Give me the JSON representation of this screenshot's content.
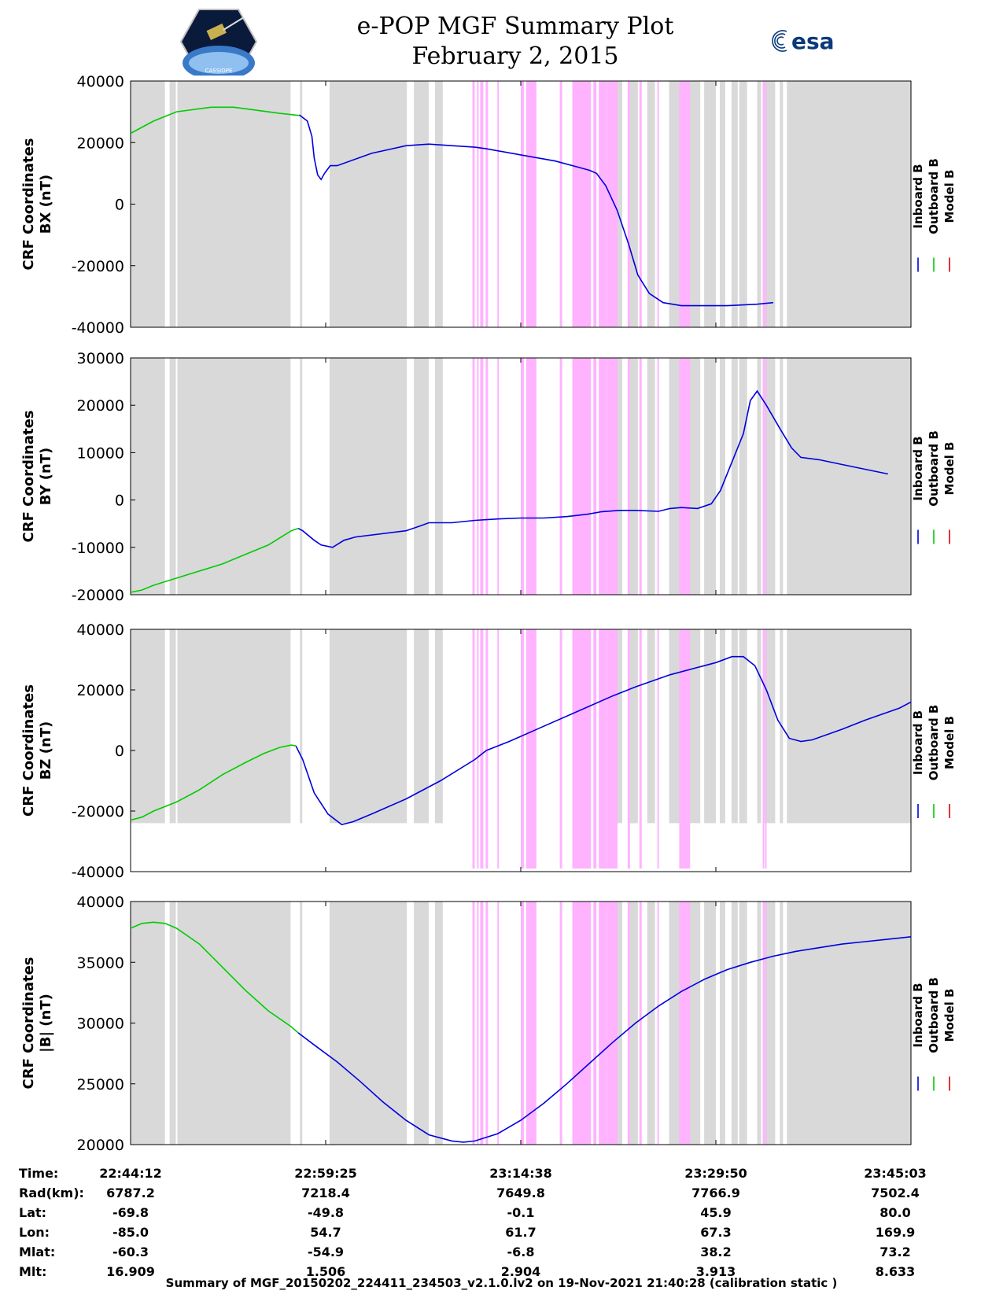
{
  "header": {
    "title": "e-POP MGF Summary Plot",
    "date": "February 2, 2015",
    "logo_left": "epop-mission-logo",
    "logo_right": "esa",
    "logo_left_text": "CASSIOPE"
  },
  "colors": {
    "inboard": "#0000e0",
    "outboard": "#00cc00",
    "model": "#e00000",
    "gap": "#d9d9d9",
    "event": "#ffb3ff"
  },
  "legend": [
    "Inboard B",
    "Outboard B",
    "Model B"
  ],
  "chart_data": [
    {
      "type": "line",
      "ylabel": [
        "CRF Coordinates",
        "BX (nT)"
      ],
      "ylim": [
        -40000,
        40000
      ],
      "yticks": [
        40000,
        20000,
        0,
        -20000,
        -40000
      ],
      "series": [
        {
          "name": "Inboard B",
          "points": [
            [
              0.735,
              29000
            ],
            [
              0.77,
              27000
            ],
            [
              0.79,
              22000
            ],
            [
              0.8,
              15000
            ],
            [
              0.815,
              9500
            ],
            [
              0.83,
              8000
            ],
            [
              0.845,
              10000
            ],
            [
              0.87,
              12500
            ],
            [
              0.9,
              12500
            ],
            [
              1.05,
              16500
            ],
            [
              1.2,
              19000
            ],
            [
              1.3,
              19500
            ],
            [
              1.4,
              19000
            ],
            [
              1.5,
              18500
            ],
            [
              1.55,
              18000
            ],
            [
              1.7,
              16000
            ],
            [
              1.85,
              14000
            ],
            [
              1.95,
              12000
            ],
            [
              2.0,
              11000
            ],
            [
              2.03,
              10000
            ],
            [
              2.07,
              6000
            ],
            [
              2.12,
              -2000
            ],
            [
              2.17,
              -13000
            ],
            [
              2.21,
              -23000
            ],
            [
              2.26,
              -29000
            ],
            [
              2.32,
              -32000
            ],
            [
              2.4,
              -33000
            ],
            [
              2.5,
              -33000
            ],
            [
              2.6,
              -33000
            ],
            [
              2.73,
              -32500
            ],
            [
              2.8,
              -32000
            ]
          ]
        },
        {
          "name": "Outboard B",
          "points": [
            [
              0,
              23000
            ],
            [
              0.1,
              27000
            ],
            [
              0.2,
              30000
            ],
            [
              0.35,
              31500
            ],
            [
              0.45,
              31500
            ],
            [
              0.55,
              30500
            ],
            [
              0.65,
              29500
            ],
            [
              0.735,
              28800
            ]
          ]
        }
      ]
    },
    {
      "type": "line",
      "ylabel": [
        "CRF Coordinates",
        "BY (nT)"
      ],
      "ylim": [
        -20000,
        30000
      ],
      "yticks": [
        30000,
        20000,
        10000,
        0,
        -10000,
        -20000
      ],
      "series": [
        {
          "name": "Inboard B",
          "points": [
            [
              0.73,
              -6000
            ],
            [
              0.75,
              -6500
            ],
            [
              0.8,
              -8500
            ],
            [
              0.83,
              -9500
            ],
            [
              0.88,
              -10000
            ],
            [
              0.93,
              -8500
            ],
            [
              0.98,
              -7800
            ],
            [
              1.2,
              -6500
            ],
            [
              1.26,
              -5500
            ],
            [
              1.3,
              -4800
            ],
            [
              1.4,
              -4800
            ],
            [
              1.5,
              -4300
            ],
            [
              1.6,
              -4000
            ],
            [
              1.7,
              -3800
            ],
            [
              1.8,
              -3800
            ],
            [
              1.9,
              -3500
            ],
            [
              1.99,
              -3000
            ],
            [
              2.05,
              -2500
            ],
            [
              2.13,
              -2200
            ],
            [
              2.2,
              -2200
            ],
            [
              2.3,
              -2400
            ],
            [
              2.35,
              -1800
            ],
            [
              2.4,
              -1600
            ],
            [
              2.47,
              -1800
            ],
            [
              2.53,
              -800
            ],
            [
              2.57,
              2000
            ],
            [
              2.62,
              8000
            ],
            [
              2.67,
              14000
            ],
            [
              2.7,
              21000
            ],
            [
              2.73,
              23000
            ],
            [
              2.77,
              20000
            ],
            [
              2.83,
              15000
            ],
            [
              2.88,
              11000
            ],
            [
              2.92,
              9000
            ],
            [
              3.0,
              8500
            ],
            [
              3.1,
              7500
            ],
            [
              3.2,
              6500
            ],
            [
              3.3,
              5500
            ]
          ]
        },
        {
          "name": "Outboard B",
          "points": [
            [
              0,
              -19500
            ],
            [
              0.05,
              -19000
            ],
            [
              0.1,
              -18000
            ],
            [
              0.2,
              -16500
            ],
            [
              0.3,
              -15000
            ],
            [
              0.4,
              -13500
            ],
            [
              0.5,
              -11500
            ],
            [
              0.6,
              -9500
            ],
            [
              0.65,
              -8000
            ],
            [
              0.7,
              -6500
            ],
            [
              0.73,
              -6000
            ]
          ]
        }
      ]
    },
    {
      "type": "line",
      "ylabel": [
        "CRF Coordinates",
        "BZ (nT)"
      ],
      "ylim": [
        -40000,
        40000
      ],
      "yticks": [
        40000,
        20000,
        0,
        -20000,
        -40000
      ],
      "series": [
        {
          "name": "Inboard B",
          "points": [
            [
              0.72,
              1500
            ],
            [
              0.75,
              -3000
            ],
            [
              0.8,
              -14000
            ],
            [
              0.86,
              -21000
            ],
            [
              0.92,
              -24500
            ],
            [
              0.97,
              -23500
            ],
            [
              1.05,
              -21000
            ],
            [
              1.2,
              -16000
            ],
            [
              1.35,
              -10000
            ],
            [
              1.5,
              -3000
            ],
            [
              1.55,
              0
            ],
            [
              1.65,
              3000
            ],
            [
              1.8,
              8000
            ],
            [
              1.95,
              13000
            ],
            [
              2.1,
              18000
            ],
            [
              2.2,
              21000
            ],
            [
              2.35,
              25000
            ],
            [
              2.55,
              29000
            ],
            [
              2.62,
              31000
            ],
            [
              2.67,
              31000
            ],
            [
              2.72,
              28000
            ],
            [
              2.77,
              20000
            ],
            [
              2.82,
              10000
            ],
            [
              2.87,
              4000
            ],
            [
              2.92,
              3000
            ],
            [
              2.97,
              3500
            ],
            [
              3.1,
              7000
            ],
            [
              3.2,
              10000
            ],
            [
              3.35,
              14000
            ],
            [
              3.4,
              16000
            ]
          ]
        },
        {
          "name": "Outboard B",
          "points": [
            [
              0,
              -23000
            ],
            [
              0.05,
              -22000
            ],
            [
              0.1,
              -20000
            ],
            [
              0.2,
              -17000
            ],
            [
              0.3,
              -13000
            ],
            [
              0.4,
              -8000
            ],
            [
              0.5,
              -4000
            ],
            [
              0.58,
              -1000
            ],
            [
              0.65,
              1000
            ],
            [
              0.7,
              1800
            ],
            [
              0.72,
              1500
            ]
          ]
        }
      ]
    },
    {
      "type": "line",
      "ylabel": [
        "CRF Coordinates",
        "|B| (nT)"
      ],
      "ylim": [
        20000,
        40000
      ],
      "yticks": [
        40000,
        35000,
        30000,
        25000,
        20000
      ],
      "series": [
        {
          "name": "Inboard B",
          "points": [
            [
              0.73,
              29200
            ],
            [
              0.8,
              28200
            ],
            [
              0.9,
              26800
            ],
            [
              1.0,
              25200
            ],
            [
              1.1,
              23500
            ],
            [
              1.2,
              22000
            ],
            [
              1.3,
              20800
            ],
            [
              1.4,
              20300
            ],
            [
              1.45,
              20200
            ],
            [
              1.5,
              20300
            ],
            [
              1.6,
              20900
            ],
            [
              1.7,
              22000
            ],
            [
              1.8,
              23400
            ],
            [
              1.9,
              25000
            ],
            [
              2.0,
              26700
            ],
            [
              2.1,
              28400
            ],
            [
              2.2,
              30000
            ],
            [
              2.3,
              31400
            ],
            [
              2.4,
              32600
            ],
            [
              2.5,
              33600
            ],
            [
              2.6,
              34400
            ],
            [
              2.7,
              35000
            ],
            [
              2.8,
              35500
            ],
            [
              2.9,
              35900
            ],
            [
              3.0,
              36200
            ],
            [
              3.1,
              36500
            ],
            [
              3.2,
              36700
            ],
            [
              3.3,
              36900
            ],
            [
              3.4,
              37100
            ]
          ]
        },
        {
          "name": "Outboard B",
          "points": [
            [
              0,
              37800
            ],
            [
              0.05,
              38200
            ],
            [
              0.1,
              38300
            ],
            [
              0.15,
              38200
            ],
            [
              0.2,
              37800
            ],
            [
              0.3,
              36500
            ],
            [
              0.4,
              34600
            ],
            [
              0.5,
              32700
            ],
            [
              0.6,
              31000
            ],
            [
              0.7,
              29700
            ],
            [
              0.73,
              29200
            ]
          ]
        }
      ]
    }
  ],
  "background_bands": {
    "units": "fraction_of_time_span",
    "gray": [
      [
        0.0,
        0.044
      ],
      [
        0.05,
        0.058
      ],
      [
        0.06,
        0.205
      ],
      [
        0.217,
        0.22
      ],
      [
        0.255,
        0.354
      ],
      [
        0.363,
        0.373
      ],
      [
        0.372,
        0.382
      ],
      [
        0.39,
        0.4
      ],
      [
        0.62,
        0.63
      ],
      [
        0.637,
        0.647
      ],
      [
        0.64,
        0.65
      ],
      [
        0.662,
        0.672
      ],
      [
        0.69,
        0.73
      ],
      [
        0.755,
        0.762
      ],
      [
        0.77,
        0.778
      ],
      [
        0.78,
        0.785
      ],
      [
        0.7,
        0.705
      ],
      [
        0.735,
        0.75
      ],
      [
        0.783,
        0.79
      ],
      [
        0.803,
        0.808
      ],
      [
        0.81,
        0.82
      ],
      [
        0.82,
        0.826
      ],
      [
        0.832,
        0.836
      ],
      [
        0.841,
        1.0
      ]
    ],
    "pink": [
      [
        0.438,
        0.441
      ],
      [
        0.444,
        0.446
      ],
      [
        0.448,
        0.452
      ],
      [
        0.455,
        0.458
      ],
      [
        0.47,
        0.472
      ],
      [
        0.5,
        0.504
      ],
      [
        0.507,
        0.52
      ],
      [
        0.55,
        0.553
      ],
      [
        0.566,
        0.59
      ],
      [
        0.593,
        0.597
      ],
      [
        0.6,
        0.61
      ],
      [
        0.61,
        0.624
      ],
      [
        0.637,
        0.64
      ],
      [
        0.652,
        0.655
      ],
      [
        0.675,
        0.677
      ],
      [
        0.703,
        0.708
      ],
      [
        0.708,
        0.717
      ],
      [
        0.81,
        0.812
      ],
      [
        0.813,
        0.815
      ]
    ]
  },
  "time_axis": {
    "labels": [
      "Time:",
      "Rad(km):",
      "Lat:",
      "Lon:",
      "Mlat:",
      "Mlt:"
    ],
    "columns": [
      [
        "22:44:12",
        "6787.2",
        "-69.8",
        "-85.0",
        "-60.3",
        "16.909"
      ],
      [
        "22:59:25",
        "7218.4",
        "-49.8",
        "54.7",
        "-54.9",
        "1.506"
      ],
      [
        "23:14:38",
        "7649.8",
        "-0.1",
        "61.7",
        "-6.8",
        "2.904"
      ],
      [
        "23:29:50",
        "7766.9",
        "45.9",
        "67.3",
        "38.2",
        "3.913"
      ],
      [
        "23:45:03",
        "7502.4",
        "80.0",
        "169.9",
        "73.2",
        "8.633"
      ]
    ]
  },
  "footer": "Summary of MGF_20150202_224411_234503_v2.1.0.lv2 on 19-Nov-2021 21:40:28 (calibration static )"
}
